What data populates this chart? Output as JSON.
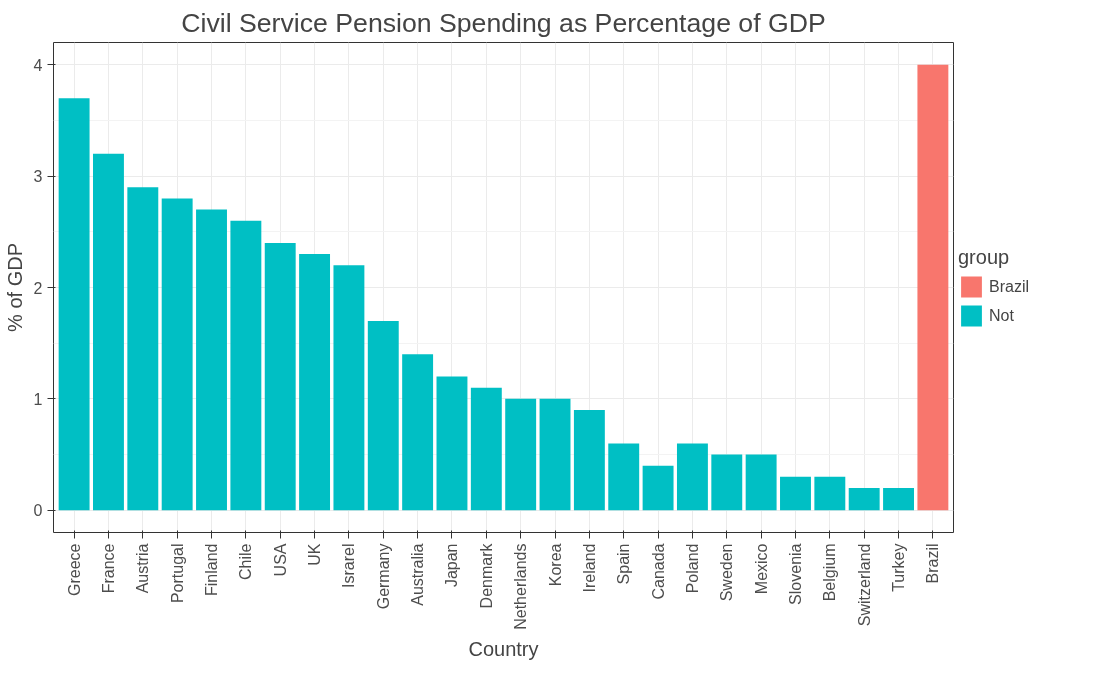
{
  "chart_data": {
    "type": "bar",
    "title": "Civil Service Pension Spending as Percentage of GDP",
    "xlabel": "Country",
    "ylabel": "% of GDP",
    "legend_title": "group",
    "categories": [
      "Greece",
      "France",
      "Austria",
      "Portugal",
      "Finland",
      "Chile",
      "USA",
      "UK",
      "Israrel",
      "Germany",
      "Australia",
      "Japan",
      "Denmark",
      "Netherlands",
      "Korea",
      "Ireland",
      "Spain",
      "Canada",
      "Poland",
      "Sweden",
      "Mexico",
      "Slovenia",
      "Belgium",
      "Switzerland",
      "Turkey",
      "Brazil"
    ],
    "series": [
      {
        "name": "Brazil",
        "color": "#f8766d",
        "values": [
          null,
          null,
          null,
          null,
          null,
          null,
          null,
          null,
          null,
          null,
          null,
          null,
          null,
          null,
          null,
          null,
          null,
          null,
          null,
          null,
          null,
          null,
          null,
          null,
          null,
          4.0
        ]
      },
      {
        "name": "Not",
        "color": "#00bfc4",
        "values": [
          3.7,
          3.2,
          2.9,
          2.8,
          2.7,
          2.6,
          2.4,
          2.3,
          2.2,
          1.7,
          1.4,
          1.2,
          1.1,
          1.0,
          1.0,
          0.9,
          0.6,
          0.4,
          0.6,
          0.5,
          0.5,
          0.3,
          0.3,
          0.2,
          0.2,
          null
        ]
      }
    ],
    "ylim": [
      -0.2,
      4.2
    ],
    "yticks": [
      0,
      1,
      2,
      3,
      4
    ],
    "grid": true,
    "legend": "right"
  }
}
